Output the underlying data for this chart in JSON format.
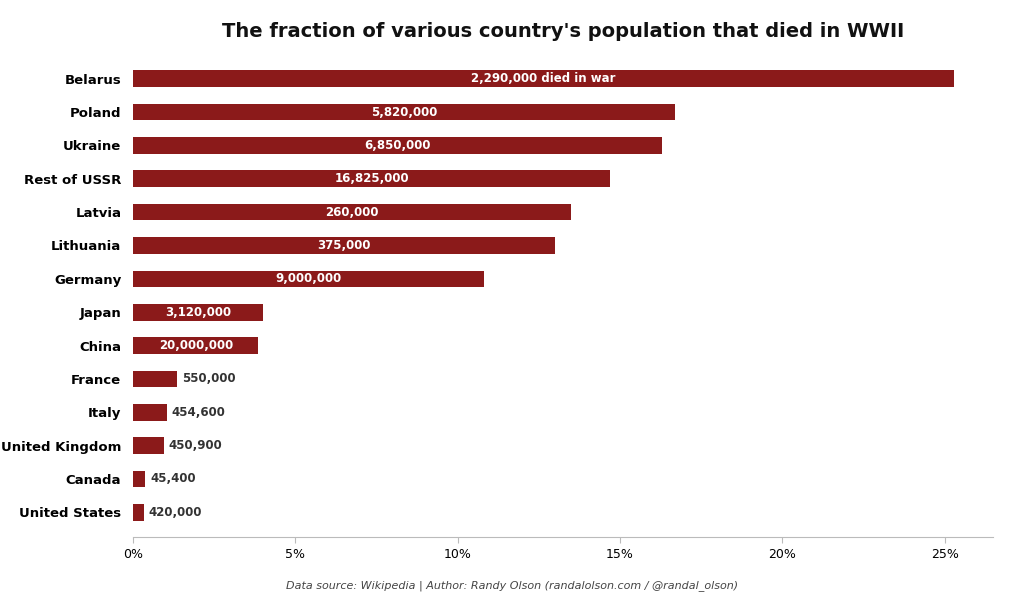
{
  "title": "The fraction of various country's population that died in WWII",
  "countries": [
    "Belarus",
    "Poland",
    "Ukraine",
    "Rest of USSR",
    "Latvia",
    "Lithuania",
    "Germany",
    "Japan",
    "China",
    "France",
    "Italy",
    "United Kingdom",
    "Canada",
    "United States"
  ],
  "percentages": [
    25.3,
    16.7,
    16.3,
    14.7,
    13.5,
    13.0,
    10.8,
    4.0,
    3.86,
    1.35,
    1.03,
    0.94,
    0.38,
    0.32
  ],
  "labels": [
    "2,290,000 died in war",
    "5,820,000",
    "6,850,000",
    "16,825,000",
    "260,000",
    "375,000",
    "9,000,000",
    "3,120,000",
    "20,000,000",
    "550,000",
    "454,600",
    "450,900",
    "45,400",
    "420,000"
  ],
  "bar_color": "#8B1A1A",
  "text_color_inside": "#FFFFFF",
  "text_color_outside": "#333333",
  "background_color": "#FFFFFF",
  "xlabel_ticks": [
    "0%",
    "5%",
    "10%",
    "15%",
    "20%",
    "25%"
  ],
  "xlabel_vals": [
    0,
    5,
    10,
    15,
    20,
    25
  ],
  "xlim": [
    0,
    26.5
  ],
  "footer": "Data source: Wikipedia | Author: Randy Olson (randalolson.com / @randal_olson)",
  "inside_label_threshold": 3.0,
  "bar_height": 0.5,
  "label_fontsize": 8.5,
  "ytick_fontsize": 9.5,
  "xtick_fontsize": 9,
  "title_fontsize": 14
}
